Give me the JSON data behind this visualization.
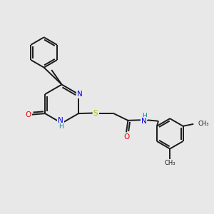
{
  "bg_color": "#e8e8e8",
  "bond_color": "#1a1a1a",
  "line_width": 1.4,
  "atom_colors": {
    "N": "#0000ee",
    "O": "#ee0000",
    "S": "#bbbb00",
    "H": "#008888",
    "C": "#1a1a1a"
  },
  "font_size": 7.5,
  "figsize": [
    3.0,
    3.0
  ],
  "dpi": 100
}
